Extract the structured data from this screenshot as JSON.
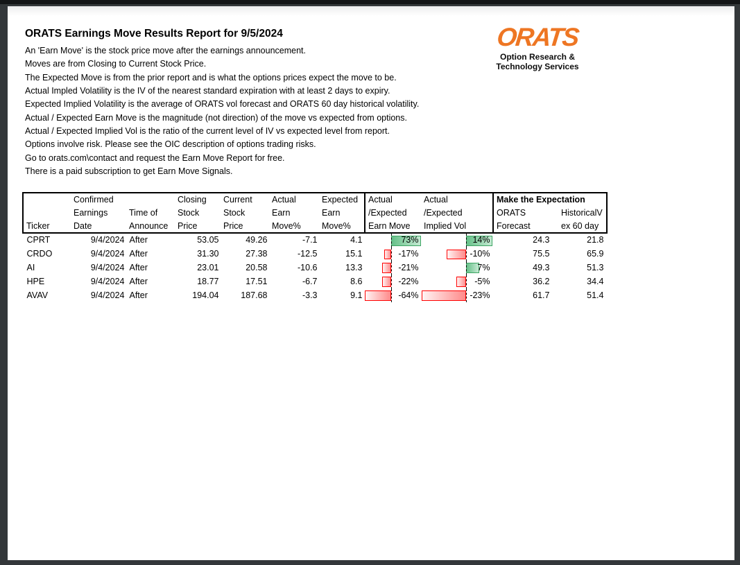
{
  "report": {
    "title": "ORATS Earnings Move Results Report for 9/5/2024",
    "description_lines": [
      "An 'Earn Move' is the stock price move after the earnings announcement.",
      "Moves are from Closing to Current Stock Price.",
      "The Expected Move is from the prior report and is what the options prices expect the move to be.",
      "Actual Impled Volatility is the IV of the nearest standard expiration with at least 2 days to expiry.",
      "Expected Implied Volatility is the average of ORATS vol forecast and ORATS 60 day historical volatility.",
      "Actual / Expected Earn Move is the magnitude (not direction) of the move vs expected from options.",
      "Actual / Expected Implied Vol is the ratio of the current level of IV vs expected level from report.",
      "Options involve risk. Please see the OIC description of options trading risks.",
      "Go to orats.com\\contact and request the Earn Move Report for free.",
      "There is a paid subscription to get Earn Move Signals."
    ]
  },
  "logo": {
    "wordmark": "ORATS",
    "tagline_line1": "Option Research &",
    "tagline_line2": "Technology Services",
    "color": "#ee7623"
  },
  "table": {
    "group_header": "Make the Expectation",
    "headers": {
      "ticker": [
        "",
        "",
        "Ticker"
      ],
      "date": [
        "Confirmed",
        "Earnings",
        "Date"
      ],
      "announce": [
        "",
        "Time of",
        "Announce"
      ],
      "closing": [
        "Closing",
        "Stock",
        "Price"
      ],
      "current": [
        "Current",
        "Stock",
        "Price"
      ],
      "actual_move": [
        "Actual",
        "Earn",
        "Move%"
      ],
      "expected_move": [
        "Expected",
        "Earn",
        "Move%"
      ],
      "earn_move": [
        "Actual",
        "/Expected",
        "Earn Move"
      ],
      "implied_vol": [
        "Actual",
        "/Expected",
        "Implied Vol"
      ],
      "orats_forecast": [
        "ORATS",
        "Forecast"
      ],
      "historical_v": [
        "HistoricalV",
        "ex 60 day"
      ]
    },
    "bar_columns": {
      "earn_move": {
        "min": -64,
        "max": 73
      },
      "implied_vol": {
        "min": -23,
        "max": 14
      }
    },
    "bar_colors": {
      "positive_border": "#3da563",
      "positive_fill_start": "#66c089",
      "positive_fill_end": "#c6ead3",
      "negative_border": "#ff0000",
      "negative_fill_start": "#fff4f4",
      "negative_fill_end": "#ff8a8a"
    },
    "rows": [
      {
        "ticker": "CPRT",
        "date": "9/4/2024",
        "announce": "After",
        "closing": "53.05",
        "current": "49.26",
        "actual_move": "-7.1",
        "expected_move": "4.1",
        "earn_move_pct": 73,
        "earn_move_label": "73%",
        "implied_vol_pct": 14,
        "implied_vol_label": "14%",
        "orats_forecast": "24.3",
        "historical_v": "21.8"
      },
      {
        "ticker": "CRDO",
        "date": "9/4/2024",
        "announce": "After",
        "closing": "31.30",
        "current": "27.38",
        "actual_move": "-12.5",
        "expected_move": "15.1",
        "earn_move_pct": -17,
        "earn_move_label": "-17%",
        "implied_vol_pct": -10,
        "implied_vol_label": "-10%",
        "orats_forecast": "75.5",
        "historical_v": "65.9"
      },
      {
        "ticker": "AI",
        "date": "9/4/2024",
        "announce": "After",
        "closing": "23.01",
        "current": "20.58",
        "actual_move": "-10.6",
        "expected_move": "13.3",
        "earn_move_pct": -21,
        "earn_move_label": "-21%",
        "implied_vol_pct": 7,
        "implied_vol_label": "7%",
        "orats_forecast": "49.3",
        "historical_v": "51.3"
      },
      {
        "ticker": "HPE",
        "date": "9/4/2024",
        "announce": "After",
        "closing": "18.77",
        "current": "17.51",
        "actual_move": "-6.7",
        "expected_move": "8.6",
        "earn_move_pct": -22,
        "earn_move_label": "-22%",
        "implied_vol_pct": -5,
        "implied_vol_label": "-5%",
        "orats_forecast": "36.2",
        "historical_v": "34.4"
      },
      {
        "ticker": "AVAV",
        "date": "9/4/2024",
        "announce": "After",
        "closing": "194.04",
        "current": "187.68",
        "actual_move": "-3.3",
        "expected_move": "9.1",
        "earn_move_pct": -64,
        "earn_move_label": "-64%",
        "implied_vol_pct": -23,
        "implied_vol_label": "-23%",
        "orats_forecast": "61.7",
        "historical_v": "51.4"
      }
    ]
  }
}
